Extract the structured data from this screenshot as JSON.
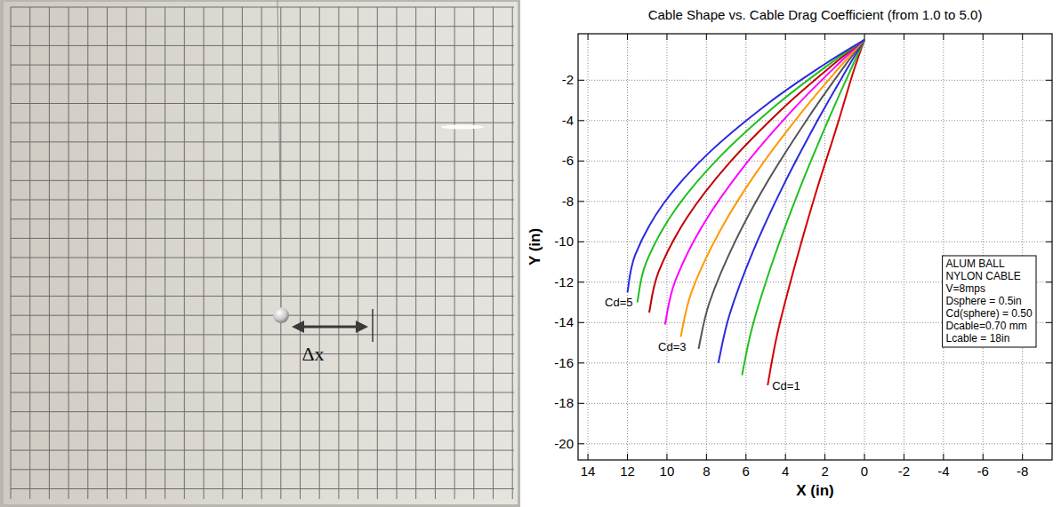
{
  "photo": {
    "label": "Δx"
  },
  "chart_data": {
    "type": "line",
    "title": "Cable Shape vs. Cable Drag Coefficient (from 1.0 to 5.0)",
    "x_label": "X (in)",
    "y_label": "Y (in)",
    "xlim": [
      14.5,
      -9.5
    ],
    "ylim": [
      -20.8,
      0.3
    ],
    "xticks": [
      14,
      12,
      10,
      8,
      6,
      4,
      2,
      0,
      -2,
      -4,
      -6,
      -8
    ],
    "yticks": [
      -2,
      -4,
      -6,
      -8,
      -10,
      -12,
      -14,
      -16,
      -18,
      -20
    ],
    "grid": true,
    "annotations": [
      "ALUM BALL",
      "NYLON CABLE",
      "V=8mps",
      "Dsphere = 0.5in",
      "Cd(sphere) = 0.50",
      "Dcable=0.70 mm",
      "Lcable = 18in"
    ],
    "series": [
      {
        "name": "Cd=1",
        "color": "#d40000",
        "x": [
          0,
          0.6,
          1.4,
          2.5,
          3.5,
          4.4,
          4.9
        ],
        "values": [
          0,
          -1.7,
          -4.3,
          -7.7,
          -11.1,
          -14.5,
          -17.1
        ]
      },
      {
        "color": "#1fc01f",
        "x": [
          0,
          0.78,
          1.91,
          3.32,
          4.58,
          5.65,
          6.2
        ],
        "values": [
          0,
          -1.66,
          -4.15,
          -7.47,
          -10.79,
          -14.11,
          -16.6
        ]
      },
      {
        "color": "#2a2ae0",
        "x": [
          0,
          0.98,
          2.38,
          4.1,
          5.61,
          6.83,
          7.4
        ],
        "values": [
          0,
          -1.6,
          -4.0,
          -7.2,
          -10.4,
          -13.6,
          -16.0
        ]
      },
      {
        "color": "#555555",
        "x": [
          0,
          1.18,
          2.83,
          4.83,
          6.53,
          7.85,
          8.4
        ],
        "values": [
          0,
          -1.53,
          -3.83,
          -6.89,
          -9.95,
          -13.01,
          -15.3
        ]
      },
      {
        "name": "Cd=3",
        "color": "#ff9900",
        "x": [
          0,
          1.36,
          3.26,
          5.51,
          7.37,
          8.76,
          9.3
        ],
        "values": [
          0,
          -1.47,
          -3.68,
          -6.62,
          -9.56,
          -12.5,
          -14.7
        ]
      },
      {
        "color": "#ff00ff",
        "x": [
          0,
          1.55,
          3.69,
          6.17,
          8.18,
          9.6,
          10.1
        ],
        "values": [
          0,
          -1.41,
          -3.53,
          -6.35,
          -9.17,
          -11.99,
          -14.1
        ]
      },
      {
        "color": "#c00000",
        "x": [
          0,
          1.74,
          4.12,
          6.83,
          8.97,
          10.42,
          10.9
        ],
        "values": [
          0,
          -1.35,
          -3.38,
          -6.08,
          -8.78,
          -11.48,
          -13.5
        ]
      },
      {
        "color": "#1fc01f",
        "x": [
          0,
          1.91,
          4.49,
          7.38,
          9.61,
          11.06,
          11.5
        ],
        "values": [
          0,
          -1.3,
          -3.25,
          -5.85,
          -8.45,
          -11.05,
          -13.0
        ]
      },
      {
        "name": "Cd=5",
        "color": "#2a2ae0",
        "x": [
          0,
          2.08,
          4.85,
          7.91,
          10.19,
          11.6,
          12.0
        ],
        "values": [
          0,
          -1.25,
          -3.13,
          -5.63,
          -8.13,
          -10.63,
          -12.5
        ]
      }
    ]
  }
}
